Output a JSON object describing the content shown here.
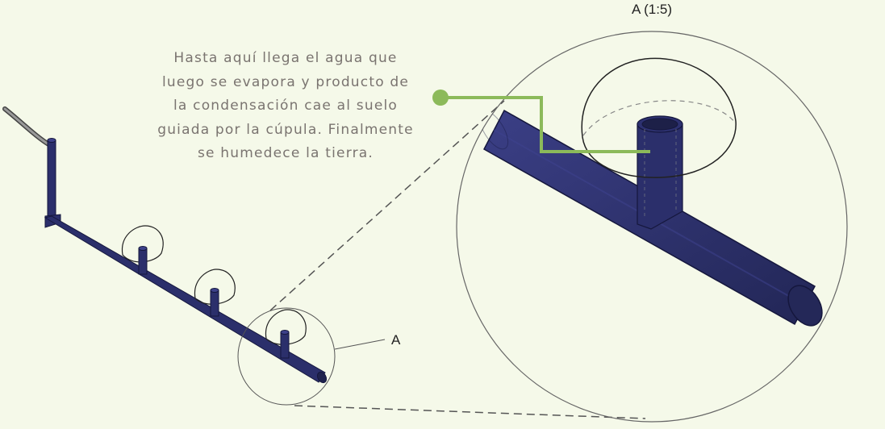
{
  "detail_title": "A (1:5)",
  "detail_marker": "A",
  "caption_lines": [
    "Hasta aquí llega el agua que",
    "luego se evapora y producto de",
    "la condensación cae al suelo",
    "guiada por la cúpula. Finalmente",
    "se humedece la tierra."
  ],
  "colors": {
    "background": "#f5f9e9",
    "pipe": "#2b2f6b",
    "pipe_edge": "#15173d",
    "leader": "#8cba5a",
    "caption_text": "#7a7470",
    "outline": "#555555"
  }
}
